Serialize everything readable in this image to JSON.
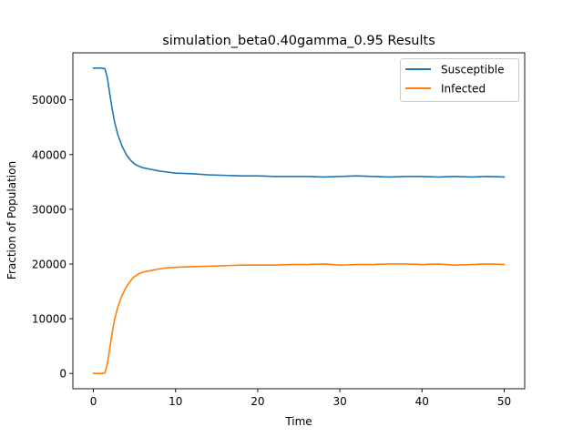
{
  "chart_data": {
    "type": "line",
    "title": "simulation_beta0.40gamma_0.95 Results",
    "xlabel": "Time",
    "ylabel": "Fraction of Population",
    "xlim": [
      -2.5,
      52.5
    ],
    "ylim": [
      -2800,
      58600
    ],
    "x_ticks": [
      0,
      10,
      20,
      30,
      40,
      50
    ],
    "x_tick_labels": [
      "0",
      "10",
      "20",
      "30",
      "40",
      "50"
    ],
    "y_ticks": [
      0,
      10000,
      20000,
      30000,
      40000,
      50000
    ],
    "y_tick_labels": [
      "0",
      "10000",
      "20000",
      "30000",
      "40000",
      "50000"
    ],
    "grid": false,
    "legend_position": "top-right",
    "series": [
      {
        "name": "Susceptible",
        "color": "#1f77b4",
        "x": [
          0,
          0.5,
          1.0,
          1.4,
          1.7,
          2.0,
          2.3,
          2.6,
          3.0,
          3.5,
          4.0,
          4.5,
          5.0,
          5.5,
          6.0,
          7.0,
          8.0,
          9.0,
          10.0,
          12.0,
          14.0,
          16.0,
          18.0,
          20.0,
          22.0,
          24.0,
          26.0,
          28.0,
          30.0,
          32.0,
          34.0,
          36.0,
          38.0,
          40.0,
          42.0,
          44.0,
          46.0,
          48.0,
          50.0
        ],
        "y": [
          55800,
          55800,
          55800,
          55700,
          54000,
          51000,
          48200,
          45800,
          43500,
          41500,
          40000,
          39000,
          38300,
          37900,
          37600,
          37300,
          37000,
          36800,
          36600,
          36500,
          36300,
          36200,
          36100,
          36100,
          36000,
          36000,
          36000,
          35900,
          36000,
          36100,
          36000,
          35900,
          36000,
          36000,
          35900,
          36000,
          35900,
          36000,
          35900
        ]
      },
      {
        "name": "Infected",
        "color": "#ff7f0e",
        "x": [
          0,
          0.5,
          1.0,
          1.4,
          1.7,
          2.0,
          2.3,
          2.6,
          3.0,
          3.5,
          4.0,
          4.5,
          5.0,
          5.5,
          6.0,
          7.0,
          8.0,
          9.0,
          10.0,
          12.0,
          14.0,
          16.0,
          18.0,
          20.0,
          22.0,
          24.0,
          26.0,
          28.0,
          30.0,
          32.0,
          34.0,
          36.0,
          38.0,
          40.0,
          42.0,
          44.0,
          46.0,
          48.0,
          50.0
        ],
        "y": [
          0,
          0,
          0,
          50,
          1800,
          4700,
          7600,
          10000,
          12300,
          14300,
          15800,
          16900,
          17700,
          18200,
          18500,
          18800,
          19100,
          19300,
          19400,
          19500,
          19600,
          19700,
          19800,
          19800,
          19800,
          19900,
          19900,
          20000,
          19800,
          19900,
          19900,
          20000,
          20000,
          19900,
          20000,
          19800,
          19900,
          20000,
          19900
        ]
      }
    ]
  }
}
